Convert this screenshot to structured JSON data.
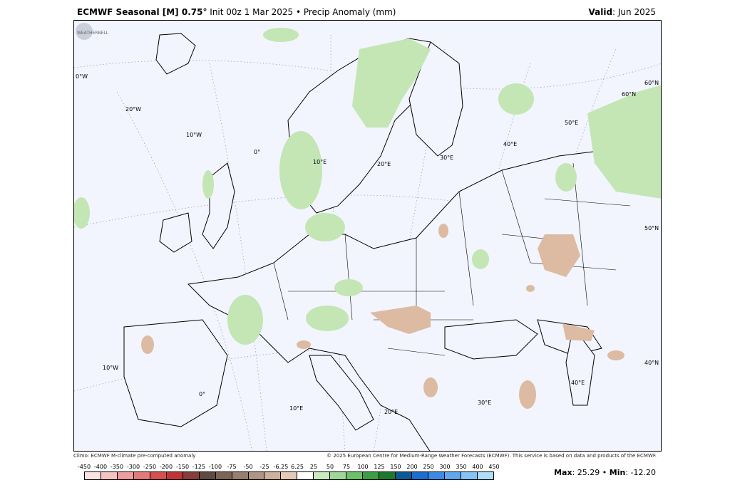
{
  "header": {
    "model": "ECMWF Seasonal [M] 0.75",
    "degree_mark": "°",
    "init": "Init 00z 1 Mar 2025",
    "bullet": "•",
    "field": "Precip Anomaly (mm)",
    "valid_label": "Valid",
    "valid_value": ": Jun 2025"
  },
  "credits": {
    "climo": "Climo: ECMWF M-climate pre-computed anomaly",
    "copyright": "© 2025 European Centre for Medium-Range Weather Forecasts (ECMWF). This service is based on data and products of the ECMWF."
  },
  "stats": {
    "max_label": "Max",
    "max_value": ": 25.29",
    "bullet": "•",
    "min_label": "Min",
    "min_value": ": -12.20"
  },
  "logo_text": "WEATHERBELL",
  "map_labels": {
    "lon_0w": "0°W",
    "lon_20w": "20°W",
    "lon_10w": "10°W",
    "lon_0": "0°",
    "lon_10e": "10°E",
    "lon_20e": "20°E",
    "lon_30e": "30°E",
    "lon_40e": "40°E",
    "lon_50e": "50°E",
    "lat_60n": "60°N",
    "lat_60n_b": "60°N",
    "lat_50n": "50°N",
    "lat_40n": "40°N",
    "lon_10w_b": "10°W",
    "lon_0_b": "0°",
    "lon_10e_b": "10°E",
    "lon_20e_b": "20°E",
    "lon_30e_b": "30°E",
    "lon_40e_b": "40°E"
  },
  "colorbar": {
    "labels": [
      "-450",
      "-400",
      "-350",
      "-300",
      "-250",
      "-200",
      "-150",
      "-125",
      "-100",
      "-75",
      "-50",
      "-25",
      "-6.25",
      "6.25",
      "25",
      "50",
      "75",
      "100",
      "125",
      "150",
      "200",
      "250",
      "300",
      "350",
      "400",
      "450"
    ],
    "colors": [
      "#fbe3e3",
      "#f6c3c3",
      "#ee9e9e",
      "#e27a7a",
      "#d44f4f",
      "#c23535",
      "#8a3b3b",
      "#5f4a42",
      "#7b6355",
      "#977e6e",
      "#b09585",
      "#cfb09a",
      "#e6cbb4",
      "#ffffff",
      "#c9eac0",
      "#9fd896",
      "#6dc06a",
      "#3c9e44",
      "#1d7a2b",
      "#0b5a96",
      "#1a6fd0",
      "#3b8be6",
      "#5ea8ef",
      "#87c4f4",
      "#b0def8"
    ]
  }
}
